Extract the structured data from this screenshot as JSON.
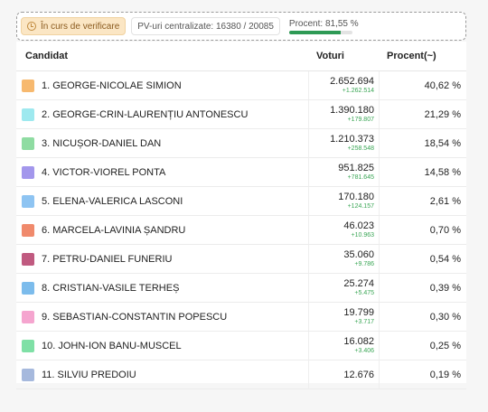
{
  "status": {
    "verify_label": "În curs de verificare",
    "pv_label": "PV-uri centralizate: 16380 / 20085",
    "percent_label": "Procent: 81,55 %",
    "percent_value": 0.8155
  },
  "table": {
    "headers": {
      "candidate": "Candidat",
      "votes": "Voturi",
      "percent": "Procent(~)"
    },
    "rows": [
      {
        "name": "1. GEORGE-NICOLAE SIMION",
        "votes": "2.652.694",
        "delta": "+1.262.514",
        "percent": "40,62 %",
        "color": "#f7b96f"
      },
      {
        "name": "2. GEORGE-CRIN-LAURENȚIU ANTONESCU",
        "votes": "1.390.180",
        "delta": "+179.807",
        "percent": "21,29 %",
        "color": "#9ee9ef"
      },
      {
        "name": "3. NICUȘOR-DANIEL DAN",
        "votes": "1.210.373",
        "delta": "+258.548",
        "percent": "18,54 %",
        "color": "#8fdca2"
      },
      {
        "name": "4. VICTOR-VIOREL PONTA",
        "votes": "951.825",
        "delta": "+781.645",
        "percent": "14,58 %",
        "color": "#a397ec"
      },
      {
        "name": "5. ELENA-VALERICA LASCONI",
        "votes": "170.180",
        "delta": "+124.157",
        "percent": "2,61 %",
        "color": "#8ec4f2"
      },
      {
        "name": "6. MARCELA-LAVINIA ȘANDRU",
        "votes": "46.023",
        "delta": "+10.963",
        "percent": "0,70 %",
        "color": "#f08a6c"
      },
      {
        "name": "7. PETRU-DANIEL FUNERIU",
        "votes": "35.060",
        "delta": "+9.786",
        "percent": "0,54 %",
        "color": "#c05a80"
      },
      {
        "name": "8. CRISTIAN-VASILE TERHEȘ",
        "votes": "25.274",
        "delta": "+5.475",
        "percent": "0,39 %",
        "color": "#7cbcec"
      },
      {
        "name": "9. SEBASTIAN-CONSTANTIN POPESCU",
        "votes": "19.799",
        "delta": "+3.717",
        "percent": "0,30 %",
        "color": "#f5a5cf"
      },
      {
        "name": "10. JOHN-ION BANU-MUSCEL",
        "votes": "16.082",
        "delta": "+3.406",
        "percent": "0,25 %",
        "color": "#7fe0a6"
      },
      {
        "name": "11. SILVIU PREDOIU",
        "votes": "12.676",
        "delta": "",
        "percent": "0,19 %",
        "color": "#a6b9dd"
      }
    ]
  }
}
